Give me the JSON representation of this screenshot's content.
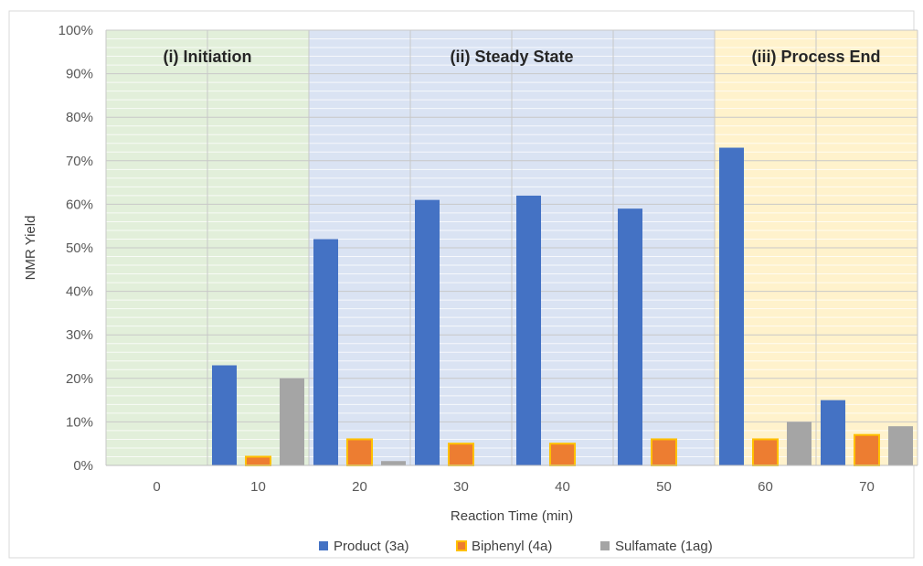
{
  "chart_data": {
    "type": "bar",
    "title": "",
    "xlabel": "Reaction Time (min)",
    "ylabel": "NMR Yield",
    "categories": [
      "0",
      "10",
      "20",
      "30",
      "40",
      "50",
      "60",
      "70"
    ],
    "ylim": [
      0,
      100
    ],
    "y_ticks": [
      "0%",
      "10%",
      "20%",
      "30%",
      "40%",
      "50%",
      "60%",
      "70%",
      "80%",
      "90%",
      "100%"
    ],
    "grid": true,
    "legend_position": "bottom",
    "series": [
      {
        "name": "Product (3a)",
        "color": "#4472c4",
        "values": [
          0,
          23,
          52,
          61,
          62,
          59,
          73,
          15
        ]
      },
      {
        "name": "Biphenyl (4a)",
        "color": "#ed7d31",
        "border": "#ffc000",
        "values": [
          0,
          2,
          6,
          5,
          5,
          6,
          6,
          7
        ]
      },
      {
        "name": "Sulfamate (1ag)",
        "color": "#a5a5a5",
        "values": [
          0,
          20,
          1,
          0,
          0,
          0,
          10,
          9
        ]
      }
    ],
    "phases": [
      {
        "label": "(i) Initiation",
        "start_category": "0",
        "end_category": "10",
        "color": "#e2efda"
      },
      {
        "label": "(ii) Steady State",
        "start_category": "20",
        "end_category": "50",
        "color": "#dae3f3"
      },
      {
        "label": "(iii) Process End",
        "start_category": "60",
        "end_category": "70",
        "color": "#fff2cc"
      }
    ]
  }
}
